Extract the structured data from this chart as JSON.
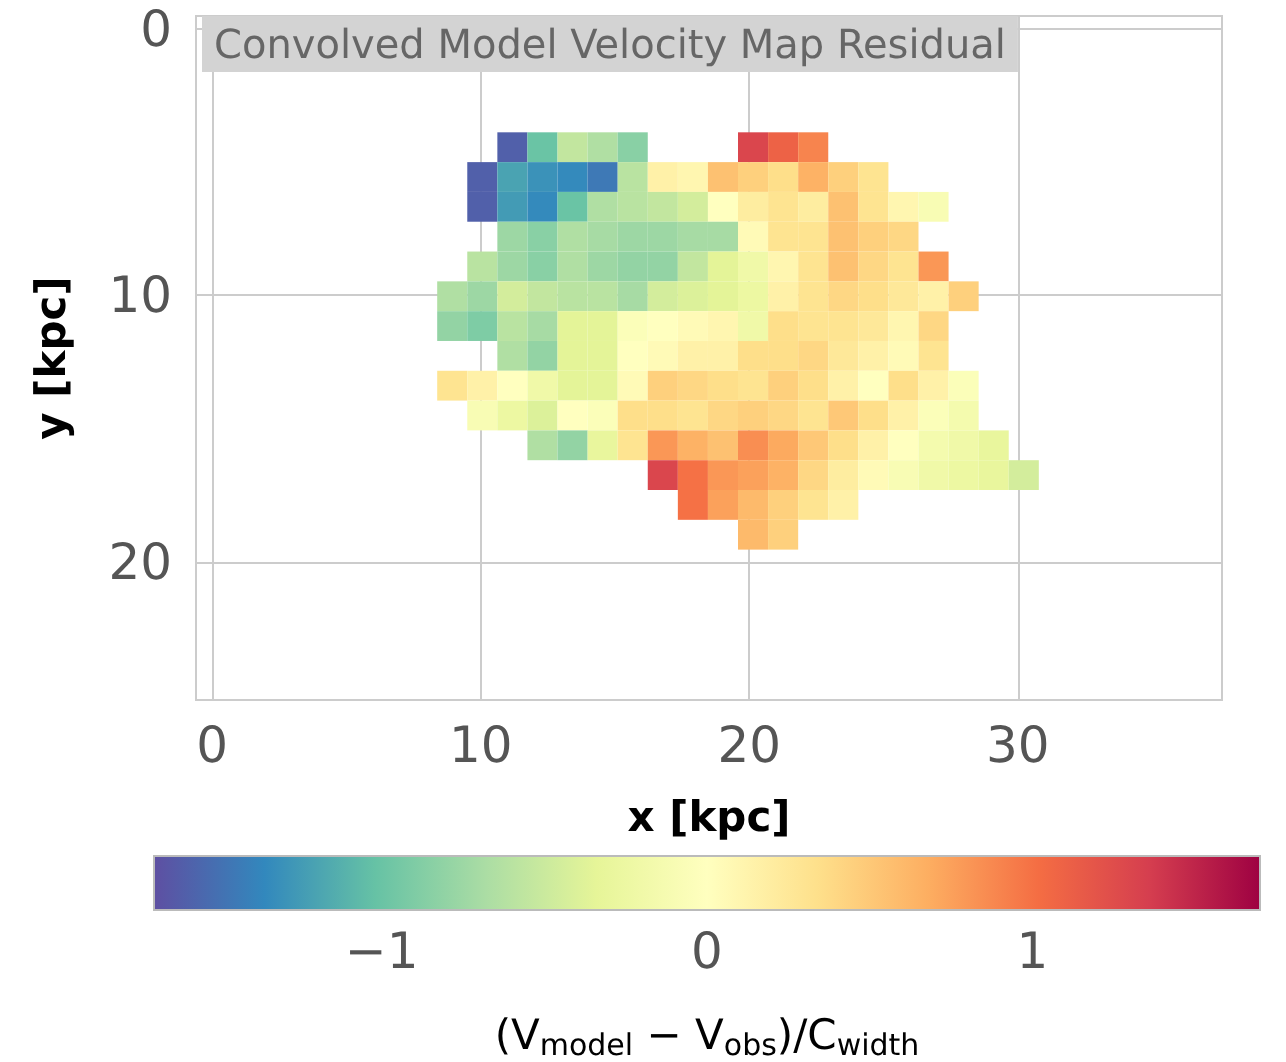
{
  "chart_data": {
    "type": "heatmap",
    "title": "Convolved Model Velocity Map Residual",
    "xlabel": "x [kpc]",
    "ylabel": "y [kpc]",
    "clabel": "(V$_{model}$ − V$_{obs}$)/C$_{width}$",
    "x": [
      8.94,
      10.06,
      11.18,
      12.3,
      13.42,
      14.54,
      15.66,
      16.78,
      17.9,
      19.02,
      20.14,
      21.26,
      22.38,
      23.5,
      24.62,
      25.74,
      26.86,
      27.98,
      29.1,
      30.22
    ],
    "y": [
      4.43,
      5.55,
      6.67,
      7.79,
      8.91,
      10.03,
      11.15,
      12.27,
      13.39,
      14.51,
      15.63,
      16.75,
      17.87,
      18.99
    ],
    "cells": [
      [
        null,
        null,
        -1.6,
        -1.0,
        -0.55,
        -0.65,
        -0.85,
        null,
        null,
        null,
        1.3,
        1.1,
        0.9,
        null,
        null,
        null,
        null,
        null,
        null,
        null
      ],
      [
        null,
        -1.6,
        -1.2,
        -1.3,
        -1.35,
        -1.45,
        -0.6,
        0.15,
        0.1,
        0.55,
        0.45,
        0.35,
        0.65,
        0.45,
        0.3,
        null,
        null,
        null,
        null,
        null
      ],
      [
        null,
        -1.6,
        -1.25,
        -1.35,
        -1.0,
        -0.65,
        -0.6,
        -0.55,
        -0.45,
        0.0,
        0.2,
        0.3,
        0.2,
        0.55,
        0.3,
        0.1,
        -0.1,
        null,
        null,
        null
      ],
      [
        null,
        null,
        -0.75,
        -0.85,
        -0.65,
        -0.7,
        -0.75,
        -0.75,
        -0.7,
        -0.7,
        0.05,
        0.3,
        0.3,
        0.55,
        0.45,
        0.4,
        null,
        null,
        null,
        null
      ],
      [
        null,
        -0.6,
        -0.75,
        -0.85,
        -0.65,
        -0.75,
        -0.8,
        -0.8,
        -0.55,
        -0.35,
        -0.2,
        0.1,
        0.3,
        0.55,
        0.4,
        0.3,
        0.8,
        null,
        null,
        null
      ],
      [
        -0.65,
        -0.75,
        -0.45,
        -0.55,
        -0.6,
        -0.6,
        -0.7,
        -0.45,
        -0.4,
        -0.35,
        -0.25,
        0.15,
        0.3,
        0.4,
        0.35,
        0.25,
        0.15,
        0.45,
        null,
        null
      ],
      [
        -0.8,
        -0.9,
        -0.6,
        -0.7,
        -0.35,
        -0.35,
        -0.05,
        0.0,
        0.05,
        0.1,
        -0.2,
        0.35,
        0.3,
        0.3,
        0.25,
        0.1,
        0.4,
        null,
        null,
        null
      ],
      [
        null,
        null,
        -0.65,
        -0.8,
        -0.35,
        -0.35,
        0.0,
        0.05,
        0.15,
        0.15,
        0.35,
        0.35,
        0.4,
        0.25,
        0.15,
        0.05,
        0.3,
        null,
        null,
        null
      ],
      [
        0.3,
        0.15,
        0.0,
        -0.2,
        -0.35,
        -0.35,
        0.05,
        0.45,
        0.4,
        0.35,
        0.3,
        0.45,
        0.35,
        0.15,
        0.0,
        0.35,
        0.15,
        -0.05,
        null,
        null
      ],
      [
        null,
        -0.1,
        -0.25,
        -0.4,
        0.0,
        -0.05,
        0.35,
        0.35,
        0.3,
        0.4,
        0.45,
        0.4,
        0.3,
        0.5,
        0.35,
        0.15,
        -0.05,
        -0.15,
        null,
        null
      ],
      [
        null,
        null,
        null,
        -0.65,
        -0.8,
        -0.3,
        0.3,
        0.8,
        0.65,
        0.55,
        0.85,
        0.7,
        0.5,
        0.35,
        0.15,
        0.0,
        -0.15,
        -0.2,
        -0.3,
        null
      ],
      [
        null,
        null,
        null,
        null,
        null,
        null,
        null,
        1.3,
        1.0,
        0.8,
        0.75,
        0.65,
        0.4,
        0.2,
        0.05,
        -0.1,
        -0.2,
        -0.25,
        -0.3,
        -0.45
      ],
      [
        null,
        null,
        null,
        null,
        null,
        null,
        null,
        null,
        1.0,
        0.75,
        0.6,
        0.45,
        0.3,
        0.15,
        null,
        null,
        null,
        null,
        null,
        null
      ],
      [
        null,
        null,
        null,
        null,
        null,
        null,
        null,
        null,
        null,
        null,
        0.6,
        0.45,
        null,
        null,
        null,
        null,
        null,
        null,
        null,
        null
      ]
    ],
    "xlim": [
      -0.6,
      37.6
    ],
    "ylim": [
      25.2,
      -0.5
    ],
    "xticks": [
      0,
      10,
      20,
      30
    ],
    "yticks": [
      0,
      10,
      20
    ],
    "clim": [
      -1.7,
      1.7
    ],
    "cticks": [
      -1,
      0,
      1
    ],
    "grid": true
  }
}
